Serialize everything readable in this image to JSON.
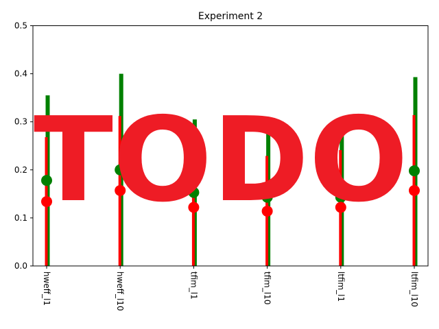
{
  "chart_data": {
    "type": "errorbar",
    "title": "Experiment 2",
    "xlabel": "",
    "ylabel": "",
    "ylim": [
      0,
      0.5
    ],
    "yticks": [
      "0.0",
      "0.1",
      "0.2",
      "0.3",
      "0.4",
      "0.5"
    ],
    "categories": [
      "hweff_l1",
      "hweff_l10",
      "tfim_l1",
      "tfim_l10",
      "ltfim_l1",
      "ltfim_l10"
    ],
    "series": [
      {
        "color": "#008000",
        "values": [
          0.178,
          0.2,
          0.153,
          0.143,
          0.143,
          0.198
        ],
        "upper": [
          0.355,
          0.4,
          0.305,
          0.285,
          0.29,
          0.393
        ]
      },
      {
        "color": "#ff0000",
        "values": [
          0.134,
          0.157,
          0.122,
          0.114,
          0.122,
          0.157
        ],
        "upper": [
          0.268,
          0.312,
          0.243,
          0.229,
          0.241,
          0.314
        ]
      }
    ],
    "grid": false,
    "overlay_text": "TODO",
    "overlay_color": "#ee1c25"
  }
}
